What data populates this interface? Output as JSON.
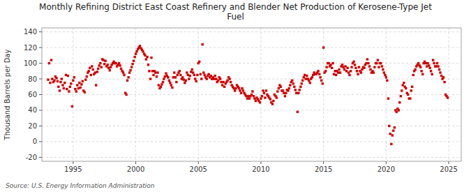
{
  "chart_data": {
    "type": "scatter",
    "title": "Monthly Refining District East Coast Refinery and Blender Net Production of Kerosene-Type Jet\nFuel",
    "y_label": "Thousand Barrels per Day",
    "source": "Source: U.S. Energy Information Administration",
    "color": "#cc0000",
    "marker": "square",
    "grid": true,
    "xlim": [
      1992.5,
      2026.0
    ],
    "ylim": [
      -25,
      145
    ],
    "xticks": [
      1995,
      2000,
      2005,
      2010,
      2015,
      2020,
      2025
    ],
    "yticks": [
      -20,
      0,
      20,
      40,
      60,
      80,
      100,
      120,
      140
    ],
    "x": [
      1993.0,
      1993.08,
      1993.17,
      1993.25,
      1993.33,
      1993.42,
      1993.5,
      1993.58,
      1993.67,
      1993.75,
      1993.83,
      1993.92,
      1994.0,
      1994.08,
      1994.17,
      1994.25,
      1994.33,
      1994.42,
      1994.5,
      1994.58,
      1994.67,
      1994.75,
      1994.83,
      1994.92,
      1995.0,
      1995.08,
      1995.17,
      1995.25,
      1995.33,
      1995.42,
      1995.5,
      1995.58,
      1995.67,
      1995.75,
      1995.83,
      1995.92,
      1996.0,
      1996.08,
      1996.17,
      1996.25,
      1996.33,
      1996.42,
      1996.5,
      1996.58,
      1996.67,
      1996.75,
      1996.83,
      1996.92,
      1997.0,
      1997.08,
      1997.17,
      1997.25,
      1997.33,
      1997.42,
      1997.5,
      1997.58,
      1997.67,
      1997.75,
      1997.83,
      1997.92,
      1998.0,
      1998.08,
      1998.17,
      1998.25,
      1998.33,
      1998.42,
      1998.5,
      1998.58,
      1998.67,
      1998.75,
      1998.83,
      1998.92,
      1999.0,
      1999.08,
      1999.17,
      1999.25,
      1999.33,
      1999.42,
      1999.5,
      1999.58,
      1999.67,
      1999.75,
      1999.83,
      1999.92,
      2000.0,
      2000.08,
      2000.17,
      2000.25,
      2000.33,
      2000.42,
      2000.5,
      2000.58,
      2000.67,
      2000.75,
      2000.83,
      2000.92,
      2001.0,
      2001.08,
      2001.17,
      2001.25,
      2001.33,
      2001.42,
      2001.5,
      2001.58,
      2001.67,
      2001.75,
      2001.83,
      2001.92,
      2002.0,
      2002.08,
      2002.17,
      2002.25,
      2002.33,
      2002.42,
      2002.5,
      2002.58,
      2002.67,
      2002.75,
      2002.83,
      2002.92,
      2003.0,
      2003.08,
      2003.17,
      2003.25,
      2003.33,
      2003.42,
      2003.5,
      2003.58,
      2003.67,
      2003.75,
      2003.83,
      2003.92,
      2004.0,
      2004.08,
      2004.17,
      2004.25,
      2004.33,
      2004.42,
      2004.5,
      2004.58,
      2004.67,
      2004.75,
      2004.83,
      2004.92,
      2005.0,
      2005.08,
      2005.17,
      2005.25,
      2005.33,
      2005.42,
      2005.5,
      2005.58,
      2005.67,
      2005.75,
      2005.83,
      2005.92,
      2006.0,
      2006.08,
      2006.17,
      2006.25,
      2006.33,
      2006.42,
      2006.5,
      2006.58,
      2006.67,
      2006.75,
      2006.83,
      2006.92,
      2007.0,
      2007.08,
      2007.17,
      2007.25,
      2007.33,
      2007.42,
      2007.5,
      2007.58,
      2007.67,
      2007.75,
      2007.83,
      2007.92,
      2008.0,
      2008.08,
      2008.17,
      2008.25,
      2008.33,
      2008.42,
      2008.5,
      2008.58,
      2008.67,
      2008.75,
      2008.83,
      2008.92,
      2009.0,
      2009.08,
      2009.17,
      2009.25,
      2009.33,
      2009.42,
      2009.5,
      2009.58,
      2009.67,
      2009.75,
      2009.83,
      2009.92,
      2010.0,
      2010.08,
      2010.17,
      2010.25,
      2010.33,
      2010.42,
      2010.5,
      2010.58,
      2010.67,
      2010.75,
      2010.83,
      2010.92,
      2011.0,
      2011.08,
      2011.17,
      2011.25,
      2011.33,
      2011.42,
      2011.5,
      2011.58,
      2011.67,
      2011.75,
      2011.83,
      2011.92,
      2012.0,
      2012.08,
      2012.17,
      2012.25,
      2012.33,
      2012.42,
      2012.5,
      2012.58,
      2012.67,
      2012.75,
      2012.83,
      2012.92,
      2013.0,
      2013.08,
      2013.17,
      2013.25,
      2013.33,
      2013.42,
      2013.5,
      2013.58,
      2013.67,
      2013.75,
      2013.83,
      2013.92,
      2014.0,
      2014.08,
      2014.17,
      2014.25,
      2014.33,
      2014.42,
      2014.5,
      2014.58,
      2014.67,
      2014.75,
      2014.83,
      2014.92,
      2015.0,
      2015.08,
      2015.17,
      2015.25,
      2015.33,
      2015.42,
      2015.5,
      2015.58,
      2015.67,
      2015.75,
      2015.83,
      2015.92,
      2016.0,
      2016.08,
      2016.17,
      2016.25,
      2016.33,
      2016.42,
      2016.5,
      2016.58,
      2016.67,
      2016.75,
      2016.83,
      2016.92,
      2017.0,
      2017.08,
      2017.17,
      2017.25,
      2017.33,
      2017.42,
      2017.5,
      2017.58,
      2017.67,
      2017.75,
      2017.83,
      2017.92,
      2018.0,
      2018.08,
      2018.17,
      2018.25,
      2018.33,
      2018.42,
      2018.5,
      2018.58,
      2018.67,
      2018.75,
      2018.83,
      2018.92,
      2019.0,
      2019.08,
      2019.17,
      2019.25,
      2019.33,
      2019.42,
      2019.5,
      2019.58,
      2019.67,
      2019.75,
      2019.83,
      2019.92,
      2020.0,
      2020.08,
      2020.17,
      2020.25,
      2020.33,
      2020.42,
      2020.5,
      2020.58,
      2020.67,
      2020.75,
      2020.83,
      2020.92,
      2021.0,
      2021.08,
      2021.17,
      2021.25,
      2021.33,
      2021.42,
      2021.5,
      2021.58,
      2021.67,
      2021.75,
      2021.83,
      2021.92,
      2022.0,
      2022.08,
      2022.17,
      2022.25,
      2022.33,
      2022.42,
      2022.5,
      2022.58,
      2022.67,
      2022.75,
      2022.83,
      2022.92,
      2023.0,
      2023.08,
      2023.17,
      2023.25,
      2023.33,
      2023.42,
      2023.5,
      2023.58,
      2023.67,
      2023.75,
      2023.83,
      2023.92,
      2024.0,
      2024.08,
      2024.17,
      2024.25,
      2024.33,
      2024.42,
      2024.5,
      2024.58,
      2024.67,
      2024.75,
      2024.83,
      2024.92
    ],
    "values": [
      79,
      100,
      75,
      104,
      80,
      76,
      78,
      83,
      81,
      77,
      70,
      65,
      76,
      80,
      72,
      68,
      75,
      85,
      67,
      84,
      64,
      70,
      74,
      45,
      78,
      82,
      67,
      64,
      72,
      68,
      75,
      69,
      73,
      77,
      65,
      63,
      79,
      83,
      88,
      90,
      94,
      85,
      96,
      92,
      86,
      88,
      72,
      89,
      93,
      97,
      100,
      95,
      105,
      104,
      99,
      103,
      96,
      98,
      94,
      91,
      95,
      98,
      100,
      102,
      100,
      100,
      96,
      98,
      100,
      97,
      93,
      90,
      88,
      85,
      62,
      60,
      78,
      82,
      88,
      91,
      95,
      99,
      103,
      108,
      112,
      115,
      118,
      120,
      122,
      119,
      117,
      115,
      112,
      110,
      105,
      108,
      98,
      90,
      80,
      107,
      90,
      85,
      90,
      88,
      83,
      88,
      72,
      68,
      70,
      73,
      76,
      80,
      83,
      87,
      84,
      82,
      78,
      75,
      72,
      69,
      82,
      88,
      82,
      76,
      85,
      88,
      90,
      85,
      80,
      82,
      79,
      75,
      78,
      88,
      85,
      80,
      84,
      89,
      92,
      88,
      85,
      80,
      77,
      85,
      100,
      102,
      86,
      80,
      124,
      88,
      85,
      82,
      80,
      84,
      86,
      82,
      84,
      80,
      82,
      80,
      84,
      80,
      76,
      78,
      82,
      80,
      76,
      72,
      76,
      70,
      74,
      76,
      78,
      82,
      80,
      76,
      72,
      70,
      68,
      65,
      68,
      72,
      70,
      68,
      65,
      62,
      68,
      65,
      62,
      60,
      58,
      55,
      58,
      55,
      58,
      60,
      64,
      58,
      55,
      52,
      56,
      54,
      52,
      50,
      55,
      58,
      65,
      62,
      56,
      65,
      60,
      58,
      56,
      54,
      50,
      48,
      52,
      60,
      58,
      56,
      64,
      68,
      72,
      70,
      65,
      65,
      62,
      58,
      62,
      66,
      65,
      68,
      72,
      76,
      78,
      74,
      70,
      66,
      62,
      38,
      62,
      66,
      70,
      74,
      78,
      82,
      85,
      80,
      84,
      80,
      78,
      75,
      80,
      82,
      85,
      88,
      86,
      86,
      88,
      90,
      86,
      82,
      78,
      74,
      120,
      88,
      90,
      95,
      100,
      100,
      96,
      98,
      94,
      100,
      86,
      90,
      85,
      90,
      88,
      92,
      88,
      96,
      98,
      95,
      92,
      96,
      90,
      94,
      88,
      85,
      90,
      95,
      100,
      102,
      98,
      94,
      90,
      86,
      95,
      90,
      88,
      92,
      95,
      94,
      98,
      100,
      105,
      100,
      96,
      92,
      88,
      90,
      88,
      95,
      100,
      100,
      104,
      95,
      100,
      100,
      96,
      92,
      88,
      85,
      82,
      78,
      55,
      20,
      10,
      -3,
      8,
      14,
      18,
      40,
      38,
      42,
      40,
      50,
      58,
      65,
      72,
      75,
      70,
      68,
      62,
      60,
      55,
      55,
      65,
      70,
      85,
      90,
      92,
      96,
      98,
      100,
      97,
      95,
      90,
      86,
      100,
      102,
      100,
      96,
      100,
      97,
      94,
      90,
      86,
      104,
      100,
      96,
      96,
      100,
      96,
      92,
      88,
      84,
      80,
      82,
      76,
      60,
      58,
      56
    ]
  }
}
